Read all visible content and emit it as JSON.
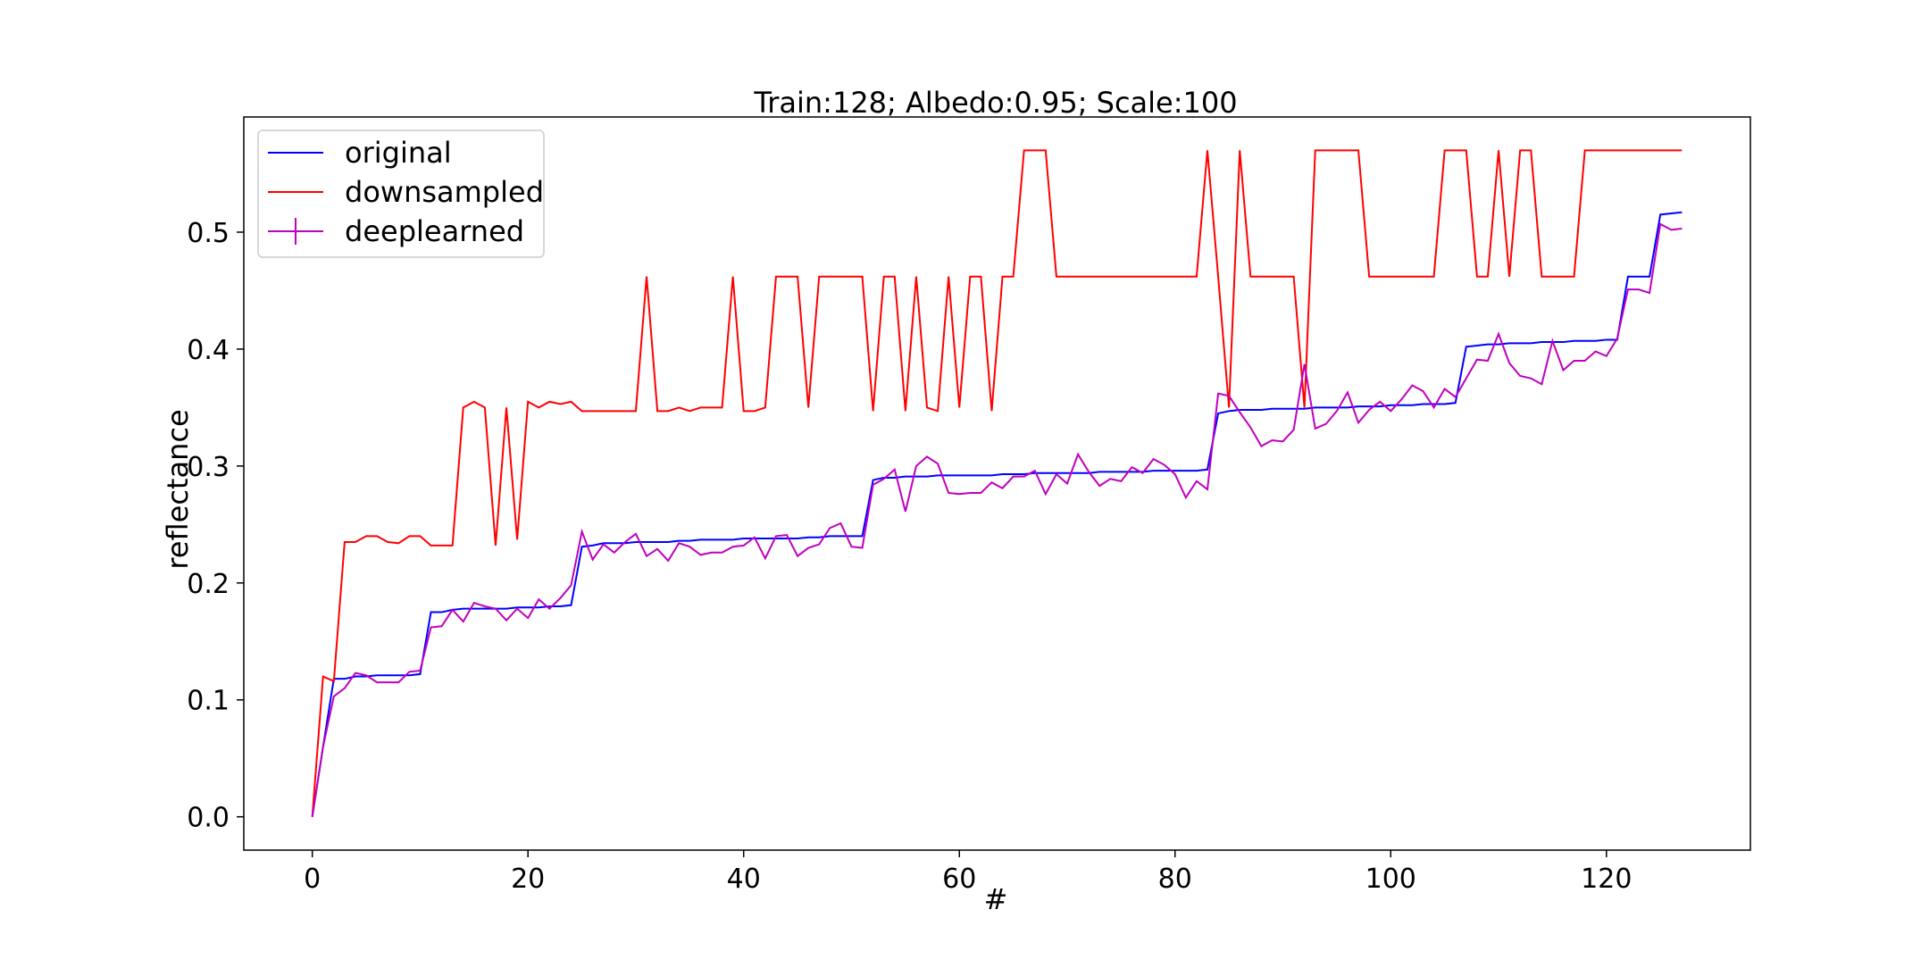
{
  "chart_data": {
    "type": "line",
    "title": "Train:128; Albedo:0.95; Scale:100",
    "xlabel": "#",
    "ylabel": "reflectance",
    "xlim": [
      -6.35,
      133.35
    ],
    "ylim": [
      -0.0285,
      0.5985
    ],
    "xticks": [
      0,
      20,
      40,
      60,
      80,
      100,
      120
    ],
    "xtick_labels": [
      "0",
      "20",
      "40",
      "60",
      "80",
      "100",
      "120"
    ],
    "yticks": [
      0.0,
      0.1,
      0.2,
      0.3,
      0.4,
      0.5
    ],
    "ytick_labels": [
      "0.0",
      "0.1",
      "0.2",
      "0.3",
      "0.4",
      "0.5"
    ],
    "grid": false,
    "legend_position": "upper-left",
    "x": [
      0,
      1,
      2,
      3,
      4,
      5,
      6,
      7,
      8,
      9,
      10,
      11,
      12,
      13,
      14,
      15,
      16,
      17,
      18,
      19,
      20,
      21,
      22,
      23,
      24,
      25,
      26,
      27,
      28,
      29,
      30,
      31,
      32,
      33,
      34,
      35,
      36,
      37,
      38,
      39,
      40,
      41,
      42,
      43,
      44,
      45,
      46,
      47,
      48,
      49,
      50,
      51,
      52,
      53,
      54,
      55,
      56,
      57,
      58,
      59,
      60,
      61,
      62,
      63,
      64,
      65,
      66,
      67,
      68,
      69,
      70,
      71,
      72,
      73,
      74,
      75,
      76,
      77,
      78,
      79,
      80,
      81,
      82,
      83,
      84,
      85,
      86,
      87,
      88,
      89,
      90,
      91,
      92,
      93,
      94,
      95,
      96,
      97,
      98,
      99,
      100,
      101,
      102,
      103,
      104,
      105,
      106,
      107,
      108,
      109,
      110,
      111,
      112,
      113,
      114,
      115,
      116,
      117,
      118,
      119,
      120,
      121,
      122,
      123,
      124,
      125,
      126,
      127
    ],
    "series": [
      {
        "name": "original",
        "color": "#0000ff",
        "marker": "none",
        "values": [
          0.0,
          0.06,
          0.118,
          0.118,
          0.12,
          0.12,
          0.121,
          0.121,
          0.121,
          0.121,
          0.122,
          0.175,
          0.175,
          0.177,
          0.178,
          0.178,
          0.178,
          0.178,
          0.178,
          0.179,
          0.179,
          0.179,
          0.18,
          0.18,
          0.181,
          0.231,
          0.232,
          0.234,
          0.234,
          0.234,
          0.235,
          0.235,
          0.235,
          0.235,
          0.236,
          0.236,
          0.237,
          0.237,
          0.237,
          0.237,
          0.238,
          0.238,
          0.238,
          0.238,
          0.238,
          0.238,
          0.239,
          0.239,
          0.24,
          0.24,
          0.24,
          0.24,
          0.288,
          0.29,
          0.29,
          0.291,
          0.291,
          0.291,
          0.292,
          0.292,
          0.292,
          0.292,
          0.292,
          0.292,
          0.293,
          0.293,
          0.293,
          0.294,
          0.294,
          0.294,
          0.294,
          0.294,
          0.294,
          0.295,
          0.295,
          0.295,
          0.295,
          0.295,
          0.296,
          0.296,
          0.296,
          0.296,
          0.296,
          0.297,
          0.345,
          0.347,
          0.348,
          0.348,
          0.348,
          0.349,
          0.349,
          0.349,
          0.349,
          0.35,
          0.35,
          0.35,
          0.35,
          0.351,
          0.351,
          0.351,
          0.352,
          0.352,
          0.352,
          0.353,
          0.353,
          0.353,
          0.354,
          0.402,
          0.403,
          0.404,
          0.404,
          0.405,
          0.405,
          0.405,
          0.406,
          0.406,
          0.406,
          0.407,
          0.407,
          0.407,
          0.408,
          0.408,
          0.462,
          0.462,
          0.462,
          0.515,
          0.516,
          0.517
        ]
      },
      {
        "name": "downsampled",
        "color": "#ff0000",
        "marker": "none",
        "values": [
          0.0,
          0.12,
          0.116,
          0.235,
          0.235,
          0.24,
          0.24,
          0.235,
          0.234,
          0.24,
          0.24,
          0.232,
          0.232,
          0.232,
          0.35,
          0.355,
          0.35,
          0.232,
          0.35,
          0.237,
          0.355,
          0.35,
          0.355,
          0.353,
          0.355,
          0.347,
          0.347,
          0.347,
          0.347,
          0.347,
          0.347,
          0.462,
          0.347,
          0.347,
          0.35,
          0.347,
          0.35,
          0.35,
          0.35,
          0.462,
          0.347,
          0.347,
          0.35,
          0.462,
          0.462,
          0.462,
          0.35,
          0.462,
          0.462,
          0.462,
          0.462,
          0.462,
          0.347,
          0.462,
          0.462,
          0.347,
          0.462,
          0.35,
          0.347,
          0.462,
          0.35,
          0.462,
          0.462,
          0.347,
          0.462,
          0.462,
          0.57,
          0.57,
          0.57,
          0.462,
          0.462,
          0.462,
          0.462,
          0.462,
          0.462,
          0.462,
          0.462,
          0.462,
          0.462,
          0.462,
          0.462,
          0.462,
          0.462,
          0.57,
          0.462,
          0.35,
          0.57,
          0.462,
          0.462,
          0.462,
          0.462,
          0.462,
          0.35,
          0.57,
          0.57,
          0.57,
          0.57,
          0.57,
          0.462,
          0.462,
          0.462,
          0.462,
          0.462,
          0.462,
          0.462,
          0.57,
          0.57,
          0.57,
          0.462,
          0.462,
          0.57,
          0.462,
          0.57,
          0.57,
          0.462,
          0.462,
          0.462,
          0.462,
          0.57,
          0.57,
          0.57,
          0.57,
          0.57,
          0.57,
          0.57,
          0.57,
          0.57,
          0.57
        ]
      },
      {
        "name": "deeplearned",
        "color": "#bf00bf",
        "marker": "errorbar",
        "values": [
          0.0,
          0.06,
          0.103,
          0.11,
          0.123,
          0.121,
          0.115,
          0.115,
          0.115,
          0.124,
          0.125,
          0.162,
          0.163,
          0.177,
          0.167,
          0.183,
          0.18,
          0.178,
          0.168,
          0.178,
          0.17,
          0.186,
          0.178,
          0.187,
          0.198,
          0.244,
          0.22,
          0.233,
          0.226,
          0.235,
          0.242,
          0.223,
          0.229,
          0.219,
          0.234,
          0.231,
          0.224,
          0.226,
          0.226,
          0.231,
          0.232,
          0.239,
          0.221,
          0.24,
          0.241,
          0.223,
          0.23,
          0.233,
          0.247,
          0.251,
          0.231,
          0.23,
          0.284,
          0.289,
          0.297,
          0.261,
          0.3,
          0.308,
          0.302,
          0.277,
          0.276,
          0.277,
          0.277,
          0.286,
          0.281,
          0.291,
          0.291,
          0.296,
          0.276,
          0.293,
          0.285,
          0.31,
          0.295,
          0.283,
          0.289,
          0.287,
          0.299,
          0.294,
          0.306,
          0.301,
          0.293,
          0.273,
          0.287,
          0.28,
          0.362,
          0.36,
          0.346,
          0.333,
          0.317,
          0.322,
          0.321,
          0.331,
          0.387,
          0.332,
          0.336,
          0.347,
          0.363,
          0.337,
          0.348,
          0.355,
          0.347,
          0.357,
          0.369,
          0.364,
          0.35,
          0.366,
          0.359,
          0.375,
          0.391,
          0.39,
          0.413,
          0.388,
          0.377,
          0.375,
          0.37,
          0.407,
          0.382,
          0.39,
          0.39,
          0.398,
          0.394,
          0.409,
          0.451,
          0.451,
          0.448,
          0.507,
          0.502,
          0.503
        ]
      }
    ]
  }
}
